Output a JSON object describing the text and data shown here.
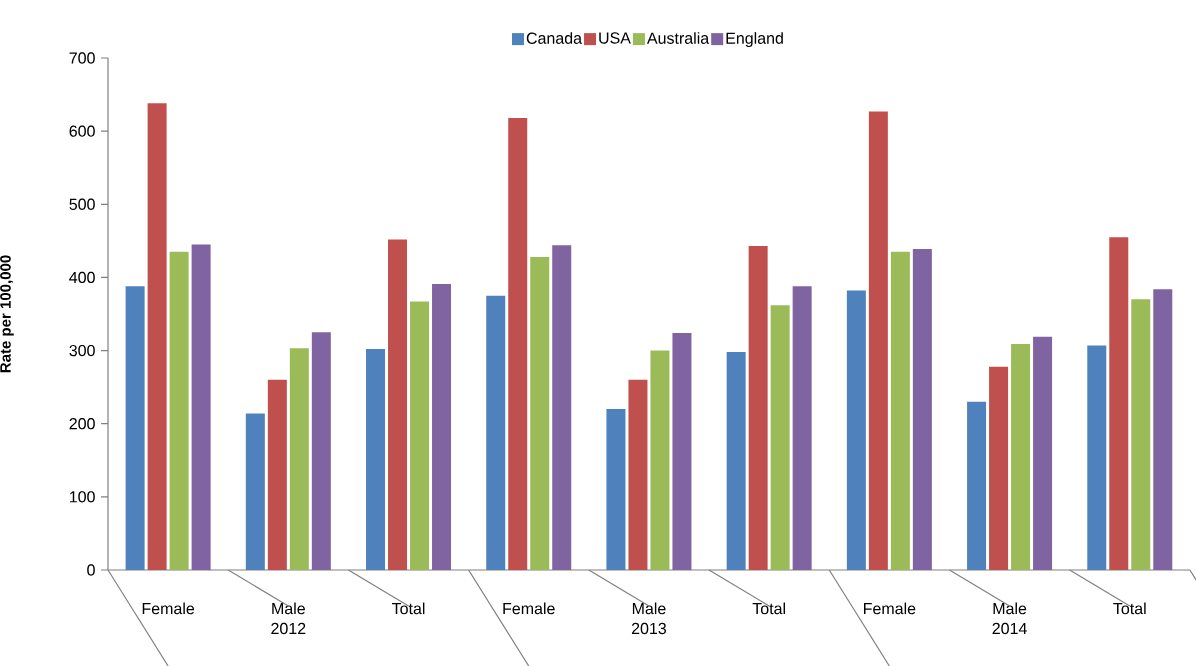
{
  "chart_data": {
    "type": "bar",
    "ylabel": "Rate per 100,000",
    "categories": [
      "Female",
      "Male",
      "Total",
      "Female",
      "Male",
      "Total",
      "Female",
      "Male",
      "Total"
    ],
    "annotations": [
      "2012",
      "2013",
      "2014"
    ],
    "series": [
      {
        "name": "Canada",
        "color": "#4f81bd",
        "values": [
          388,
          214,
          302,
          375,
          220,
          298,
          382,
          230,
          307
        ]
      },
      {
        "name": "USA",
        "color": "#c0504d",
        "values": [
          638,
          260,
          452,
          618,
          260,
          443,
          627,
          278,
          455
        ]
      },
      {
        "name": "Australia",
        "color": "#9bbb59",
        "values": [
          435,
          303,
          367,
          428,
          300,
          362,
          435,
          309,
          370
        ]
      },
      {
        "name": "England",
        "color": "#8064a2",
        "values": [
          445,
          325,
          391,
          444,
          324,
          388,
          439,
          319,
          384
        ]
      }
    ],
    "ylim": [
      0,
      700
    ],
    "yticks": [
      0,
      100,
      200,
      300,
      400,
      500,
      600,
      700
    ],
    "legend": "top"
  }
}
